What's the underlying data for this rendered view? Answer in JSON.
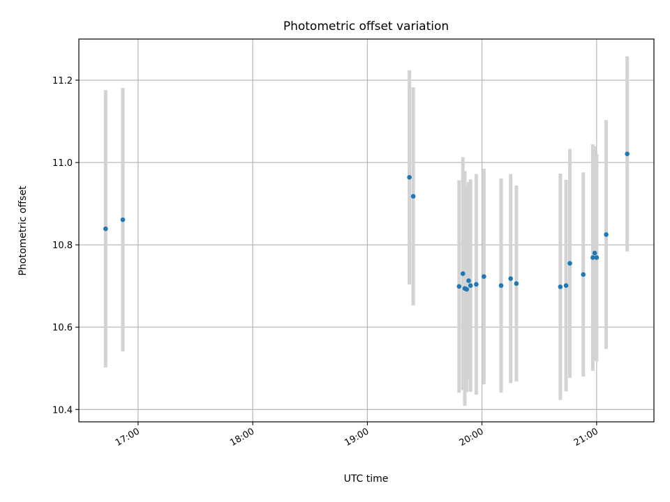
{
  "chart_data": {
    "type": "scatter",
    "title": "Photometric offset variation",
    "xlabel": "UTC time",
    "ylabel": "Photometric offset",
    "xlim": [
      "16:29",
      "21:30"
    ],
    "ylim": [
      10.37,
      11.3
    ],
    "grid": true,
    "x_ticks": [
      "17:00",
      "18:00",
      "19:00",
      "20:00",
      "21:00"
    ],
    "y_ticks": [
      10.4,
      10.6,
      10.8,
      11.0,
      11.2
    ],
    "series": [
      {
        "color": "#1f77b4",
        "error_color": "#d3d3d3",
        "points": [
          {
            "x": "16:43",
            "y": 10.839,
            "yerr": 0.337
          },
          {
            "x": "16:52",
            "y": 10.861,
            "yerr": 0.32
          },
          {
            "x": "19:22",
            "y": 10.964,
            "yerr": 0.26
          },
          {
            "x": "19:24",
            "y": 10.918,
            "yerr": 0.265
          },
          {
            "x": "19:48",
            "y": 10.699,
            "yerr": 0.258
          },
          {
            "x": "19:50",
            "y": 10.73,
            "yerr": 0.283
          },
          {
            "x": "19:51",
            "y": 10.694,
            "yerr": 0.285
          },
          {
            "x": "19:52",
            "y": 10.692,
            "yerr": 0.25
          },
          {
            "x": "19:53",
            "y": 10.713,
            "yerr": 0.24
          },
          {
            "x": "19:54",
            "y": 10.701,
            "yerr": 0.258
          },
          {
            "x": "19:57",
            "y": 10.704,
            "yerr": 0.268
          },
          {
            "x": "20:01",
            "y": 10.723,
            "yerr": 0.262
          },
          {
            "x": "20:10",
            "y": 10.701,
            "yerr": 0.26
          },
          {
            "x": "20:15",
            "y": 10.718,
            "yerr": 0.254
          },
          {
            "x": "20:18",
            "y": 10.706,
            "yerr": 0.238
          },
          {
            "x": "20:41",
            "y": 10.698,
            "yerr": 0.275
          },
          {
            "x": "20:44",
            "y": 10.701,
            "yerr": 0.257
          },
          {
            "x": "20:46",
            "y": 10.755,
            "yerr": 0.278
          },
          {
            "x": "20:53",
            "y": 10.728,
            "yerr": 0.248
          },
          {
            "x": "20:58",
            "y": 10.769,
            "yerr": 0.275
          },
          {
            "x": "20:59",
            "y": 10.78,
            "yerr": 0.26
          },
          {
            "x": "21:00",
            "y": 10.769,
            "yerr": 0.252
          },
          {
            "x": "21:05",
            "y": 10.825,
            "yerr": 0.278
          },
          {
            "x": "21:16",
            "y": 11.021,
            "yerr": 0.237
          }
        ]
      }
    ]
  }
}
